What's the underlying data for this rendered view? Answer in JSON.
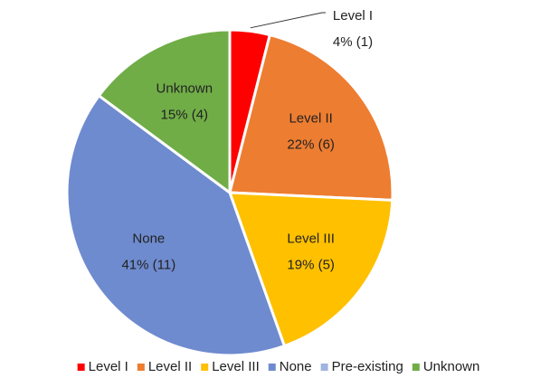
{
  "chart_data": {
    "type": "pie",
    "categories": [
      "Level I",
      "Level II",
      "Level III",
      "None",
      "Pre-existing",
      "Unknown"
    ],
    "values": [
      4,
      22,
      19,
      41,
      0,
      15
    ],
    "value_labels": [
      "4% (1)",
      "22% (6)",
      "19% (5)",
      "41% (11)",
      null,
      "15% (4)"
    ],
    "colors": [
      "#ff0000",
      "#ed7d31",
      "#ffc000",
      "#6f8bcf",
      "#a0b4e0",
      "#70ad47"
    ],
    "legend": "bottom"
  }
}
